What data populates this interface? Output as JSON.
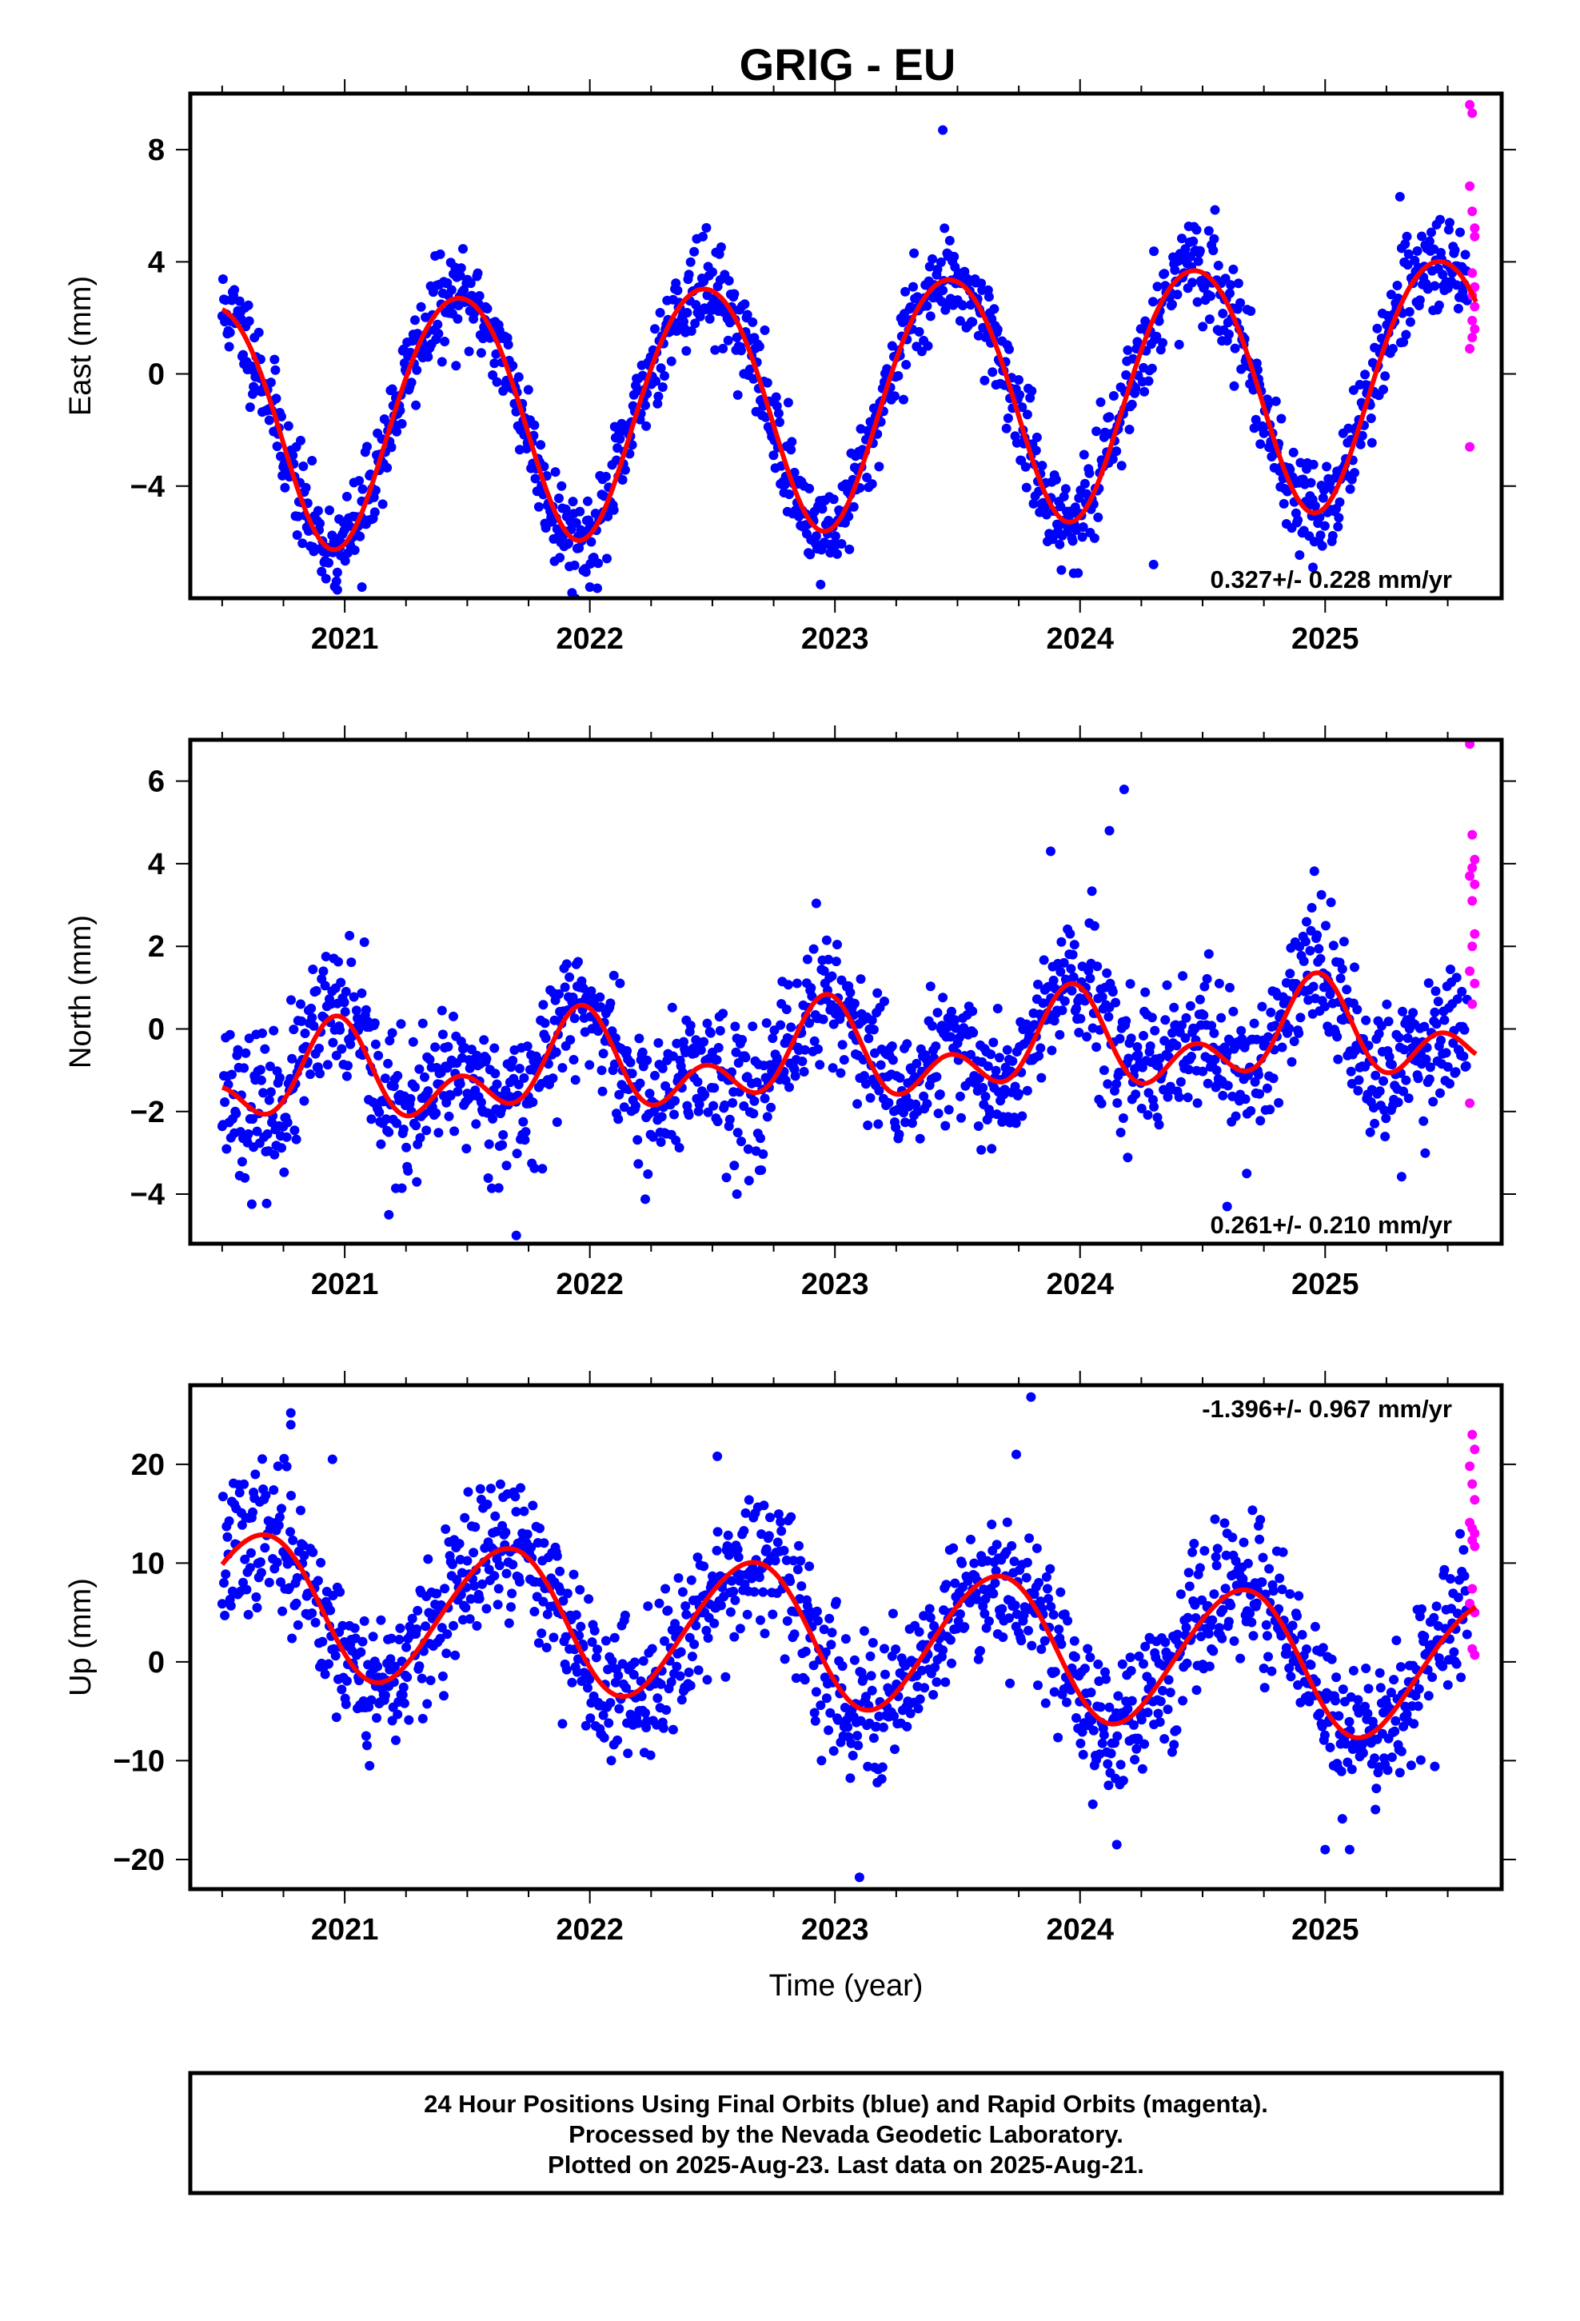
{
  "title": "GRIG - EU",
  "colors": {
    "final": "#0000ff",
    "rapid": "#ff00ff",
    "model": "#ff0000",
    "frame": "#000000"
  },
  "footer": {
    "line1": "24 Hour Positions Using Final Orbits (blue) and Rapid Orbits (magenta).",
    "line2": "Processed by the Nevada Geodetic Laboratory.",
    "line3": "Plotted on 2025-Aug-23. Last data on 2025-Aug-21."
  },
  "chart_data": [
    {
      "type": "scatter",
      "component": "east",
      "ylabel": "East (mm)",
      "xlabel": "",
      "xlim": [
        2020.37,
        2025.72
      ],
      "ylim": [
        -8.0,
        10.0
      ],
      "yticks": [
        -4,
        0,
        4,
        8
      ],
      "xticks": [
        "2021",
        "2022",
        "2023",
        "2024",
        "2025"
      ],
      "rate_text": "0.327+/- 0.228 mm/yr",
      "rate_position": "bottom-right",
      "grid": false,
      "model": {
        "trend_mm_per_yr": 0.327,
        "offset_mm": -0.9,
        "annual_amp_mm": 4.4,
        "annual_peak": 0.46,
        "semiannual_amp_mm": 0.3,
        "semiannual_peak": 0.2
      },
      "final_points": {
        "x_start": 2020.5,
        "x_end": 2025.58,
        "step_days": 1.3,
        "noise_mm": 0.85,
        "seed": 11,
        "outliers": [
          [
            2023.44,
            8.7
          ],
          [
            2024.3,
            -6.8
          ],
          [
            2022.0,
            -7.6
          ],
          [
            2020.97,
            -7.7
          ],
          [
            2021.07,
            -7.6
          ],
          [
            2024.95,
            -6.9
          ]
        ]
      },
      "rapid_points": [
        [
          2025.59,
          9.6
        ],
        [
          2025.6,
          9.3
        ],
        [
          2025.59,
          6.7
        ],
        [
          2025.6,
          5.8
        ],
        [
          2025.61,
          5.2
        ],
        [
          2025.61,
          4.9
        ],
        [
          2025.6,
          3.6
        ],
        [
          2025.61,
          3.1
        ],
        [
          2025.6,
          2.8
        ],
        [
          2025.61,
          2.4
        ],
        [
          2025.6,
          1.9
        ],
        [
          2025.61,
          1.6
        ],
        [
          2025.6,
          1.3
        ],
        [
          2025.59,
          0.9
        ],
        [
          2025.59,
          -2.6
        ]
      ]
    },
    {
      "type": "scatter",
      "component": "north",
      "ylabel": "North (mm)",
      "xlabel": "",
      "xlim": [
        2020.37,
        2025.72
      ],
      "ylim": [
        -5.2,
        7.0
      ],
      "yticks": [
        -4,
        -2,
        0,
        2,
        4,
        6
      ],
      "xticks": [
        "2021",
        "2022",
        "2023",
        "2024",
        "2025"
      ],
      "rate_text": "0.261+/- 0.210 mm/yr",
      "rate_position": "bottom-right",
      "grid": false,
      "model": {
        "trend_mm_per_yr": 0.261,
        "offset_mm": -0.7,
        "annual_amp_mm": 0.8,
        "annual_peak": 0.95,
        "semiannual_amp_mm": 0.75,
        "semiannual_peak": 0.97
      },
      "final_points": {
        "x_start": 2020.5,
        "x_end": 2025.58,
        "step_days": 1.3,
        "noise_mm": 0.85,
        "seed": 23,
        "outliers": [
          [
            2024.18,
            5.8
          ],
          [
            2023.88,
            4.3
          ],
          [
            2024.12,
            4.8
          ],
          [
            2021.7,
            -5.0
          ],
          [
            2021.18,
            -4.5
          ],
          [
            2024.6,
            -4.3
          ],
          [
            2024.68,
            -3.5
          ],
          [
            2022.6,
            -4.0
          ]
        ]
      },
      "rapid_points": [
        [
          2025.59,
          6.9
        ],
        [
          2025.6,
          4.7
        ],
        [
          2025.61,
          4.1
        ],
        [
          2025.6,
          3.9
        ],
        [
          2025.59,
          3.7
        ],
        [
          2025.61,
          3.5
        ],
        [
          2025.6,
          3.1
        ],
        [
          2025.61,
          2.3
        ],
        [
          2025.6,
          2.0
        ],
        [
          2025.59,
          1.4
        ],
        [
          2025.61,
          1.1
        ],
        [
          2025.6,
          0.6
        ],
        [
          2025.59,
          -1.8
        ]
      ]
    },
    {
      "type": "scatter",
      "component": "up",
      "ylabel": "Up (mm)",
      "xlabel": "Time (year)",
      "xlim": [
        2020.37,
        2025.72
      ],
      "ylim": [
        -23.0,
        28.0
      ],
      "yticks": [
        -20,
        -10,
        0,
        10,
        20
      ],
      "xticks": [
        "2021",
        "2022",
        "2023",
        "2024",
        "2025"
      ],
      "rate_text": "-1.396+/- 0.967 mm/yr",
      "rate_position": "top-right",
      "grid": false,
      "model": {
        "trend_mm_per_yr": -1.396,
        "offset_mm": 2.6,
        "annual_amp_mm": 7.1,
        "annual_peak": 0.65,
        "semiannual_amp_mm": 0.5,
        "semiannual_peak": 0.3
      },
      "final_points": {
        "x_start": 2020.5,
        "x_end": 2025.58,
        "step_days": 1.3,
        "noise_mm": 3.6,
        "seed": 37,
        "outliers": [
          [
            2023.8,
            26.8
          ],
          [
            2023.74,
            21.0
          ],
          [
            2020.78,
            25.2
          ],
          [
            2020.78,
            24.0
          ],
          [
            2020.95,
            20.5
          ],
          [
            2022.52,
            20.8
          ],
          [
            2023.1,
            -21.8
          ],
          [
            2024.15,
            -18.5
          ],
          [
            2025.0,
            -19.0
          ],
          [
            2025.1,
            -19.0
          ]
        ]
      },
      "rapid_points": [
        [
          2025.6,
          23.0
        ],
        [
          2025.61,
          21.5
        ],
        [
          2025.59,
          19.8
        ],
        [
          2025.6,
          18.0
        ],
        [
          2025.61,
          16.4
        ],
        [
          2025.59,
          14.1
        ],
        [
          2025.6,
          13.5
        ],
        [
          2025.61,
          13.0
        ],
        [
          2025.6,
          12.3
        ],
        [
          2025.61,
          11.7
        ],
        [
          2025.6,
          7.4
        ],
        [
          2025.59,
          5.9
        ],
        [
          2025.61,
          5.0
        ],
        [
          2025.6,
          1.3
        ],
        [
          2025.61,
          0.7
        ]
      ]
    }
  ]
}
